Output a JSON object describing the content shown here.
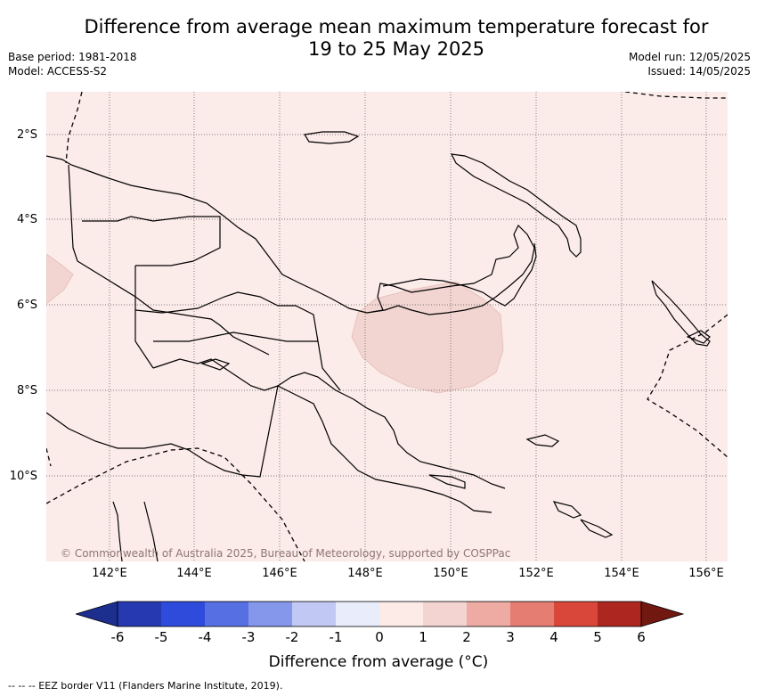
{
  "title_line1": "Difference from average mean maximum temperature forecast for",
  "title_line2": "19 to 25 May 2025",
  "meta_left": {
    "base_period": "Base period: 1981-2018",
    "model": "Model: ACCESS-S2"
  },
  "meta_right": {
    "model_run": "Model run: 12/05/2025",
    "issued": "Issued: 14/05/2025"
  },
  "lat_labels": [
    "2°S",
    "4°S",
    "6°S",
    "8°S",
    "10°S"
  ],
  "lon_labels": [
    "142°E",
    "144°E",
    "146°E",
    "148°E",
    "150°E",
    "152°E",
    "154°E",
    "156°E"
  ],
  "copyright": "© Commonwealth of Australia 2025, Bureau of Meteorology, supported by COSPPac",
  "colorbar": {
    "ticks": [
      "-6",
      "-5",
      "-4",
      "-3",
      "-2",
      "-1",
      "0",
      "1",
      "2",
      "3",
      "4",
      "5",
      "6"
    ],
    "colors": [
      "#1c2f8f",
      "#2639b0",
      "#2f4bdc",
      "#5670e3",
      "#8597ea",
      "#c1c8f3",
      "#e9ecfb",
      "#fdebe8",
      "#f4d4d1",
      "#eeaba4",
      "#e67d73",
      "#d9463a",
      "#ad2720",
      "#711810"
    ],
    "label": "Difference from average (°C)"
  },
  "legend_note": "--  --  -- EEZ border V11 (Flanders Marine Institute, 2019).",
  "map_fill": {
    "background": "#fbebe9",
    "anomaly_1_2": "#f2d4d1"
  }
}
